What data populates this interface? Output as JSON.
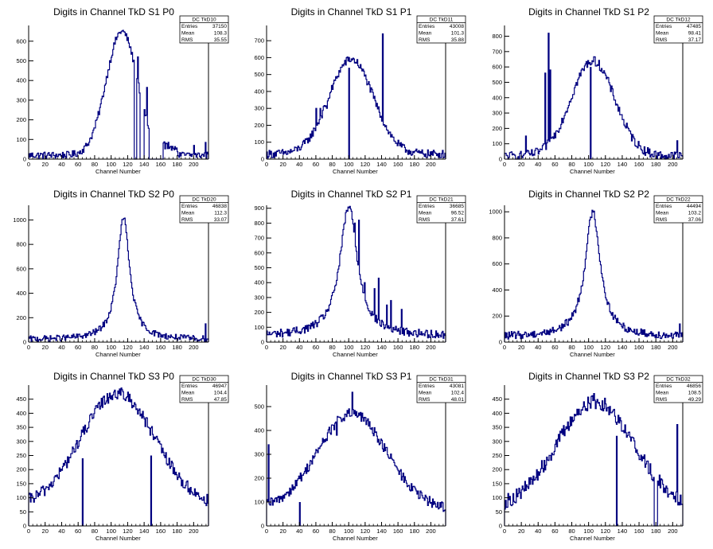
{
  "chart_data": [
    {
      "id": "S1P0",
      "type": "histogram",
      "title": "Digits in Channel TkD S1 P0",
      "xlabel": "Channel Number",
      "ylabel": "",
      "xlim": [
        0,
        218
      ],
      "ylim": [
        0,
        680
      ],
      "xticks": [
        0,
        20,
        40,
        60,
        80,
        100,
        120,
        140,
        160,
        180,
        200
      ],
      "yticks": [
        0,
        100,
        200,
        300,
        400,
        500,
        600
      ],
      "stats": {
        "name": "DC_TkD10",
        "entries": "37150",
        "mean": "108.3",
        "rms": "35.55"
      },
      "shape": {
        "kind": "gauss",
        "mu": 113,
        "sigma": 19,
        "amp": 630,
        "base": 20,
        "noise": 18,
        "tail": 0.03
      },
      "gaps": [
        [
          128,
          131
        ],
        [
          135,
          140
        ],
        [
          146,
          163
        ]
      ],
      "spikes": [
        [
          132,
          520
        ],
        [
          143,
          365
        ],
        [
          200,
          70
        ],
        [
          214,
          85
        ]
      ],
      "markers": [],
      "extra": [
        [
          160,
          180,
          90
        ]
      ]
    },
    {
      "id": "S1P1",
      "type": "histogram",
      "title": "Digits in Channel TkD S1 P1",
      "xlabel": "Channel Number",
      "ylabel": "",
      "xlim": [
        0,
        218
      ],
      "ylim": [
        0,
        790
      ],
      "xticks": [
        0,
        20,
        40,
        60,
        80,
        100,
        120,
        140,
        160,
        180,
        200
      ],
      "yticks": [
        0,
        100,
        200,
        300,
        400,
        500,
        600,
        700
      ],
      "stats": {
        "name": "DC_TkD11",
        "entries": "43008",
        "mean": "101.3",
        "rms": "35.88"
      },
      "shape": {
        "kind": "gauss",
        "mu": 103,
        "sigma": 27,
        "amp": 560,
        "base": 30,
        "noise": 24,
        "tail": 0
      },
      "gaps": [],
      "spikes": [
        [
          60,
          300
        ],
        [
          65,
          300
        ],
        [
          73,
          300
        ],
        [
          141,
          740
        ]
      ],
      "markers": [
        [
          100,
          540
        ]
      ],
      "extra": []
    },
    {
      "id": "S1P2",
      "type": "histogram",
      "title": "Digits in Channel TkD S1 P2",
      "xlabel": "Channel Number",
      "ylabel": "",
      "xlim": [
        0,
        212
      ],
      "ylim": [
        0,
        870
      ],
      "xticks": [
        0,
        20,
        40,
        60,
        80,
        100,
        120,
        140,
        160,
        180,
        200
      ],
      "yticks": [
        0,
        100,
        200,
        300,
        400,
        500,
        600,
        700,
        800
      ],
      "stats": {
        "name": "DC_TkD12",
        "entries": "47485",
        "mean": "98.41",
        "rms": "37.17"
      },
      "shape": {
        "kind": "gauss",
        "mu": 105,
        "sigma": 26,
        "amp": 620,
        "base": 20,
        "noise": 30,
        "tail": 0
      },
      "gaps": [],
      "spikes": [
        [
          48,
          560
        ],
        [
          52,
          820
        ],
        [
          54,
          580
        ],
        [
          25,
          150
        ],
        [
          205,
          120
        ]
      ],
      "markers": [
        [
          102,
          600
        ]
      ],
      "extra": []
    },
    {
      "id": "S2P0",
      "type": "histogram",
      "title": "Digits in Channel TkD S2 P0",
      "xlabel": "Channel Number",
      "ylabel": "",
      "xlim": [
        0,
        218
      ],
      "ylim": [
        0,
        1120
      ],
      "xticks": [
        0,
        20,
        40,
        60,
        80,
        100,
        120,
        140,
        160,
        180,
        200
      ],
      "yticks": [
        0,
        200,
        400,
        600,
        800,
        1000
      ],
      "stats": {
        "name": "DC_TkD20",
        "entries": "46838",
        "mean": "112.3",
        "rms": "33.07"
      },
      "shape": {
        "kind": "lorentz",
        "mu": 115,
        "sigma": 9,
        "amp": 1000,
        "base": 20,
        "noise": 25,
        "tail": 0
      },
      "gaps": [],
      "spikes": [
        [
          214,
          150
        ]
      ],
      "markers": [],
      "extra": []
    },
    {
      "id": "S2P1",
      "type": "histogram",
      "title": "Digits in Channel TkD S2 P1",
      "xlabel": "Channel Number",
      "ylabel": "",
      "xlim": [
        0,
        218
      ],
      "ylim": [
        0,
        920
      ],
      "xticks": [
        0,
        20,
        40,
        60,
        80,
        100,
        120,
        140,
        160,
        180,
        200
      ],
      "yticks": [
        0,
        100,
        200,
        300,
        400,
        500,
        600,
        700,
        800,
        900
      ],
      "stats": {
        "name": "DC_TkD21",
        "entries": "36685",
        "mean": "96.52",
        "rms": "37.61"
      },
      "shape": {
        "kind": "lorentz",
        "mu": 100,
        "sigma": 13,
        "amp": 870,
        "base": 40,
        "noise": 28,
        "tail": 0
      },
      "gaps": [],
      "spikes": [
        [
          98,
          880
        ],
        [
          103,
          880
        ],
        [
          107,
          800
        ],
        [
          112,
          820
        ],
        [
          119,
          400
        ],
        [
          131,
          360
        ],
        [
          136,
          430
        ],
        [
          146,
          250
        ],
        [
          151,
          280
        ],
        [
          164,
          220
        ]
      ],
      "markers": [],
      "extra": []
    },
    {
      "id": "S2P2",
      "type": "histogram",
      "title": "Digits in Channel TkD S2 P2",
      "xlabel": "Channel Number",
      "ylabel": "",
      "xlim": [
        0,
        212
      ],
      "ylim": [
        0,
        1050
      ],
      "xticks": [
        0,
        20,
        40,
        60,
        80,
        100,
        120,
        140,
        160,
        180,
        200
      ],
      "yticks": [
        0,
        200,
        400,
        600,
        800,
        1000
      ],
      "stats": {
        "name": "DC_TkD22",
        "entries": "44494",
        "mean": "103.2",
        "rms": "37.06"
      },
      "shape": {
        "kind": "lorentz",
        "mu": 105,
        "sigma": 11,
        "amp": 960,
        "base": 40,
        "noise": 30,
        "tail": 0
      },
      "gaps": [],
      "spikes": [
        [
          208,
          140
        ]
      ],
      "markers": [],
      "extra": []
    },
    {
      "id": "S3P0",
      "type": "histogram",
      "title": "Digits in Channel TkD S3 P0",
      "xlabel": "Channel Number",
      "ylabel": "",
      "xlim": [
        0,
        218
      ],
      "ylim": [
        0,
        500
      ],
      "xticks": [
        0,
        20,
        40,
        60,
        80,
        100,
        120,
        140,
        160,
        180,
        200
      ],
      "yticks": [
        0,
        50,
        100,
        150,
        200,
        250,
        300,
        350,
        400,
        450
      ],
      "stats": {
        "name": "DC_TkD30",
        "entries": "46947",
        "mean": "104.4",
        "rms": "47.85"
      },
      "shape": {
        "kind": "gauss",
        "mu": 108,
        "sigma": 45,
        "amp": 400,
        "base": 70,
        "noise": 22,
        "tail": 0
      },
      "gaps": [],
      "spikes": [
        [
          109,
          470
        ]
      ],
      "markers": [
        [
          65,
          240
        ],
        [
          148,
          250
        ]
      ],
      "extra": []
    },
    {
      "id": "S3P1",
      "type": "histogram",
      "title": "Digits in Channel TkD S3 P1",
      "xlabel": "Channel Number",
      "ylabel": "",
      "xlim": [
        0,
        218
      ],
      "ylim": [
        0,
        590
      ],
      "xticks": [
        0,
        20,
        40,
        60,
        80,
        100,
        120,
        140,
        160,
        180,
        200
      ],
      "yticks": [
        0,
        100,
        200,
        300,
        400,
        500
      ],
      "stats": {
        "name": "DC_TkD31",
        "entries": "43081",
        "mean": "102.4",
        "rms": "48.01"
      },
      "shape": {
        "kind": "gauss",
        "mu": 104,
        "sigma": 42,
        "amp": 400,
        "base": 70,
        "noise": 22,
        "tail": 0
      },
      "gaps": [],
      "spikes": [
        [
          2,
          340
        ],
        [
          104,
          560
        ],
        [
          85,
          380
        ]
      ],
      "markers": [
        [
          40,
          100
        ]
      ],
      "extra": []
    },
    {
      "id": "S3P2",
      "type": "histogram",
      "title": "Digits in Channel TkD S3 P2",
      "xlabel": "Channel Number",
      "ylabel": "",
      "xlim": [
        0,
        212
      ],
      "ylim": [
        0,
        500
      ],
      "xticks": [
        0,
        20,
        40,
        60,
        80,
        100,
        120,
        140,
        160,
        180,
        200
      ],
      "yticks": [
        0,
        50,
        100,
        150,
        200,
        250,
        300,
        350,
        400,
        450
      ],
      "stats": {
        "name": "DC_TkD32",
        "entries": "46856",
        "mean": "108.5",
        "rms": "49.29"
      },
      "shape": {
        "kind": "gauss",
        "mu": 108,
        "sigma": 46,
        "amp": 380,
        "base": 60,
        "noise": 26,
        "tail": 0
      },
      "gaps": [
        [
          178,
          182
        ]
      ],
      "spikes": [
        [
          106,
          470
        ],
        [
          205,
          360
        ]
      ],
      "markers": [
        [
          133,
          320
        ]
      ],
      "extra": []
    }
  ],
  "stat_labels": {
    "entries": "Entries",
    "mean": "Mean",
    "rms": "RMS"
  },
  "colors": {
    "line": "#000080",
    "axis": "#000000",
    "background": "#ffffff"
  }
}
